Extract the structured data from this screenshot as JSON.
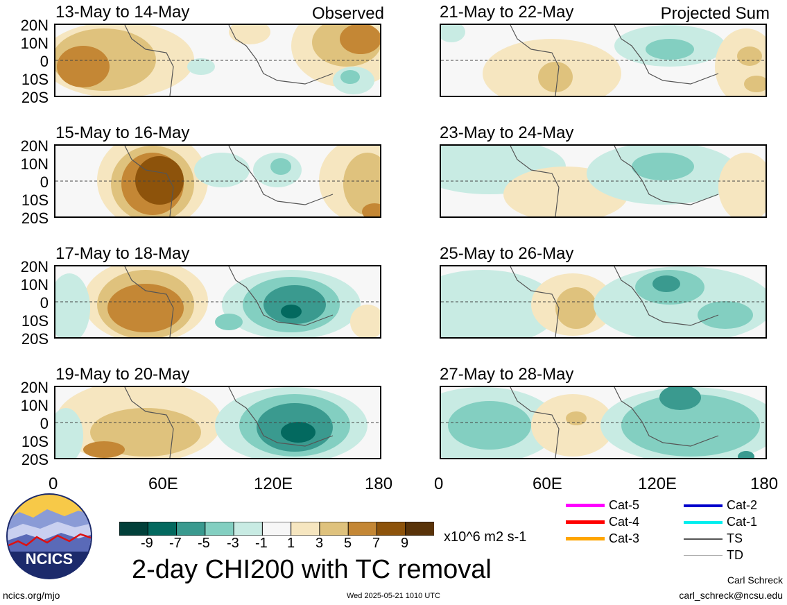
{
  "panels_left": [
    {
      "title": "13-May to 14-May",
      "tag": "Observed"
    },
    {
      "title": "15-May to 16-May",
      "tag": ""
    },
    {
      "title": "17-May to 18-May",
      "tag": ""
    },
    {
      "title": "19-May to 20-May",
      "tag": ""
    }
  ],
  "panels_right": [
    {
      "title": "21-May to 22-May",
      "tag": "Projected Sum"
    },
    {
      "title": "23-May to 24-May",
      "tag": ""
    },
    {
      "title": "25-May to 26-May",
      "tag": ""
    },
    {
      "title": "27-May to 28-May",
      "tag": ""
    }
  ],
  "lat_labels": [
    "20N",
    "10N",
    "0",
    "10S",
    "20S"
  ],
  "lon_labels": [
    "0",
    "60E",
    "120E",
    "180"
  ],
  "colorbar": {
    "colors": [
      "#01403a",
      "#03695f",
      "#3a9a8f",
      "#83cfc1",
      "#c8ebe3",
      "#f7f7f7",
      "#f6e6c0",
      "#dfc27d",
      "#c48735",
      "#8d530b",
      "#593309"
    ],
    "tick_labels": [
      "-9",
      "-7",
      "-5",
      "-3",
      "-1",
      "1",
      "3",
      "5",
      "7",
      "9"
    ],
    "units": "x10^6 m2 s-1"
  },
  "main_title": "2-day CHI200 with TC removal",
  "logo_text": "NCICS",
  "legend": [
    {
      "label": "Cat-5",
      "color": "#ff00ff",
      "width": 5
    },
    {
      "label": "Cat-4",
      "color": "#ff0000",
      "width": 5
    },
    {
      "label": "Cat-3",
      "color": "#ffa500",
      "width": 5
    },
    {
      "label": "Cat-2",
      "color": "#0000cc",
      "width": 4
    },
    {
      "label": "Cat-1",
      "color": "#00eeee",
      "width": 4
    },
    {
      "label": "TS",
      "color": "#555555",
      "width": 2
    },
    {
      "label": "TD",
      "color": "#aaaaaa",
      "width": 1
    }
  ],
  "footer": {
    "left": "ncics.org/mjo",
    "center": "Wed 2025-05-21 1010 UTC",
    "author": "Carl Schreck",
    "email": "carl_schreck@ncsu.edu"
  }
}
